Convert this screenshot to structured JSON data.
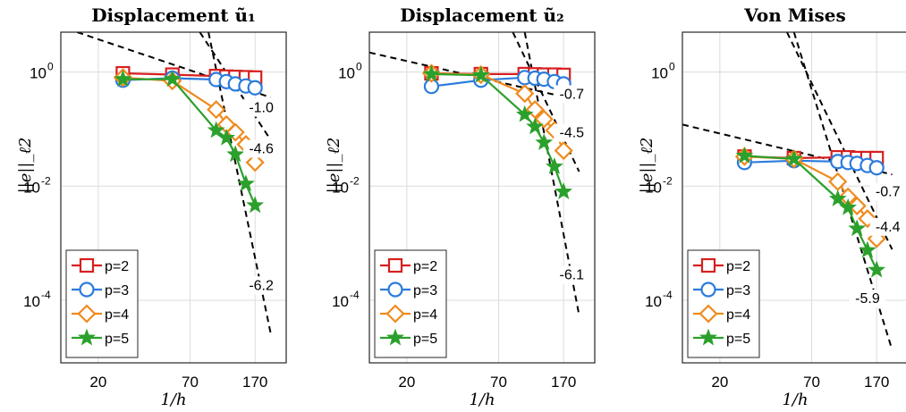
{
  "chart_data": [
    {
      "type": "line",
      "title": "Displacement ũ₁",
      "xlabel": "1/h",
      "ylabel": "||e||_ℓ2",
      "xscale": "log",
      "yscale": "log",
      "xlim": [
        12,
        260
      ],
      "ylim": [
        8e-06,
        5
      ],
      "xticks": [
        "20",
        "70",
        "170"
      ],
      "yticks": [
        {
          "base": "10",
          "exp": "0"
        },
        {
          "base": "10",
          "exp": "-2"
        },
        {
          "base": "10",
          "exp": "-4"
        }
      ],
      "grid": true,
      "legend_position": "bottom-left",
      "series": [
        {
          "name": "p=2",
          "color": "#d62020",
          "marker": "square",
          "x": [
            28,
            55,
            100,
            115,
            130,
            150,
            170
          ],
          "y": [
            0.95,
            0.9,
            0.85,
            0.83,
            0.82,
            0.81,
            0.8
          ]
        },
        {
          "name": "p=3",
          "color": "#2b7bdc",
          "marker": "circle",
          "x": [
            28,
            55,
            100,
            115,
            130,
            150,
            170
          ],
          "y": [
            0.72,
            0.78,
            0.74,
            0.68,
            0.62,
            0.57,
            0.53
          ]
        },
        {
          "name": "p=4",
          "color": "#f08a1c",
          "marker": "diamond",
          "x": [
            28,
            55,
            100,
            115,
            130,
            150,
            170
          ],
          "y": [
            0.8,
            0.7,
            0.22,
            0.12,
            0.088,
            0.054,
            0.026
          ]
        },
        {
          "name": "p=5",
          "color": "#2ca02c",
          "marker": "star",
          "x": [
            28,
            55,
            100,
            115,
            130,
            150,
            170
          ],
          "y": [
            0.75,
            0.75,
            0.095,
            0.07,
            0.036,
            0.011,
            0.0046
          ]
        }
      ],
      "reference_lines": [
        {
          "x0": 15,
          "y0": 5,
          "x1": 210,
          "y1": 0.36
        },
        {
          "x0": 80,
          "y0": 5,
          "x1": 210,
          "y1": 0.065
        },
        {
          "x0": 90,
          "y0": 5,
          "x1": 210,
          "y1": 2.7e-05
        }
      ],
      "annotations": [
        {
          "text": "-1.0",
          "x": 185,
          "y": 0.22
        },
        {
          "text": "-4.6",
          "x": 185,
          "y": 0.042
        },
        {
          "text": "-6.2",
          "x": 185,
          "y": 0.00017
        }
      ]
    },
    {
      "type": "line",
      "title": "Displacement ũ₂",
      "xlabel": "1/h",
      "ylabel": "||e||_ℓ2",
      "xscale": "log",
      "yscale": "log",
      "xlim": [
        12,
        260
      ],
      "ylim": [
        8e-06,
        5
      ],
      "xticks": [
        "20",
        "70",
        "170"
      ],
      "yticks": [
        {
          "base": "10",
          "exp": "0"
        },
        {
          "base": "10",
          "exp": "-2"
        },
        {
          "base": "10",
          "exp": "-4"
        }
      ],
      "grid": true,
      "legend_position": "bottom-left",
      "series": [
        {
          "name": "p=2",
          "color": "#d62020",
          "marker": "square",
          "x": [
            28,
            55,
            100,
            115,
            130,
            150,
            170
          ],
          "y": [
            0.95,
            0.92,
            0.92,
            0.91,
            0.9,
            0.9,
            0.89
          ]
        },
        {
          "name": "p=3",
          "color": "#2b7bdc",
          "marker": "circle",
          "x": [
            28,
            55,
            100,
            115,
            130,
            150,
            170
          ],
          "y": [
            0.56,
            0.72,
            0.8,
            0.78,
            0.75,
            0.68,
            0.62
          ]
        },
        {
          "name": "p=4",
          "color": "#f08a1c",
          "marker": "diamond",
          "x": [
            28,
            55,
            100,
            115,
            130,
            150,
            170
          ],
          "y": [
            0.95,
            0.9,
            0.42,
            0.22,
            0.15,
            0.095,
            0.042
          ]
        },
        {
          "name": "p=5",
          "color": "#2ca02c",
          "marker": "star",
          "x": [
            28,
            55,
            100,
            115,
            130,
            150,
            170
          ],
          "y": [
            0.92,
            0.88,
            0.18,
            0.11,
            0.058,
            0.022,
            0.008
          ]
        }
      ],
      "reference_lines": [
        {
          "x0": 12,
          "y0": 2.2,
          "x1": 210,
          "y1": 0.32
        },
        {
          "x0": 85,
          "y0": 5,
          "x1": 210,
          "y1": 0.018
        },
        {
          "x0": 100,
          "y0": 5,
          "x1": 210,
          "y1": 5.5e-05
        }
      ],
      "annotations": [
        {
          "text": "-0.7",
          "x": 190,
          "y": 0.38
        },
        {
          "text": "-4.5",
          "x": 190,
          "y": 0.08
        },
        {
          "text": "-6.1",
          "x": 190,
          "y": 0.00026
        }
      ]
    },
    {
      "type": "line",
      "title": "Von Mises",
      "xlabel": "1/h",
      "ylabel": "||e||_ℓ2",
      "xscale": "log",
      "yscale": "log",
      "xlim": [
        12,
        260
      ],
      "ylim": [
        8e-06,
        5
      ],
      "xticks": [
        "20",
        "70",
        "170"
      ],
      "yticks": [
        {
          "base": "10",
          "exp": "0"
        },
        {
          "base": "10",
          "exp": "-2"
        },
        {
          "base": "10",
          "exp": "-4"
        }
      ],
      "grid": true,
      "legend_position": "bottom-left",
      "series": [
        {
          "name": "p=2",
          "color": "#d62020",
          "marker": "square",
          "x": [
            28,
            55,
            100,
            115,
            130,
            150,
            170
          ],
          "y": [
            0.033,
            0.031,
            0.032,
            0.032,
            0.031,
            0.031,
            0.031
          ]
        },
        {
          "name": "p=3",
          "color": "#2b7bdc",
          "marker": "circle",
          "x": [
            28,
            55,
            100,
            115,
            130,
            150,
            170
          ],
          "y": [
            0.026,
            0.028,
            0.027,
            0.026,
            0.025,
            0.023,
            0.021
          ]
        },
        {
          "name": "p=4",
          "color": "#f08a1c",
          "marker": "diamond",
          "x": [
            28,
            55,
            100,
            115,
            130,
            150,
            170
          ],
          "y": [
            0.033,
            0.03,
            0.012,
            0.0065,
            0.0045,
            0.0027,
            0.0012
          ]
        },
        {
          "name": "p=5",
          "color": "#2ca02c",
          "marker": "star",
          "x": [
            28,
            55,
            100,
            115,
            130,
            150,
            170
          ],
          "y": [
            0.034,
            0.03,
            0.006,
            0.0042,
            0.0018,
            0.00075,
            0.00034
          ]
        }
      ],
      "reference_lines": [
        {
          "x0": 12,
          "y0": 0.12,
          "x1": 210,
          "y1": 0.016
        },
        {
          "x0": 50,
          "y0": 5,
          "x1": 210,
          "y1": 0.00078
        },
        {
          "x0": 55,
          "y0": 5,
          "x1": 210,
          "y1": 1.35e-05
        }
      ],
      "annotations": [
        {
          "text": "-0.7",
          "x": 198,
          "y": 0.0074
        },
        {
          "text": "-4.4",
          "x": 198,
          "y": 0.0018
        },
        {
          "text": "-5.9",
          "x": 150,
          "y": 0.0001
        }
      ]
    }
  ]
}
